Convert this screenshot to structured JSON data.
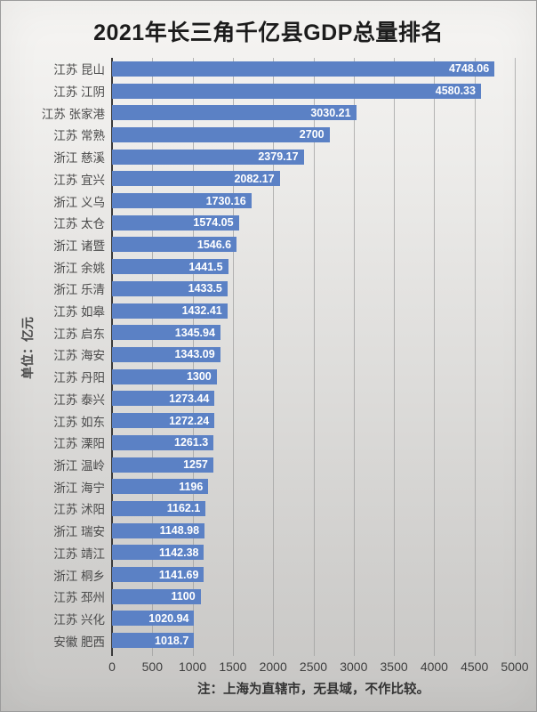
{
  "title": "2021年长三角千亿县GDP总量排名",
  "unit_label": "单位：亿元",
  "footnote": "注：上海为直辖市，无县域，不作比较。",
  "colors": {
    "bar": "#5b81c5",
    "bar_label": "#ffffff",
    "title": "#1c1c1c",
    "category_label": "#4a4a4a",
    "tick_label": "#3f3f3f",
    "gridline": "#9f9f9f",
    "axis_line": "#3a3a3a",
    "footnote": "#333333"
  },
  "chart_data": {
    "type": "bar",
    "orientation": "horizontal",
    "title": "2021年长三角千亿县GDP总量排名",
    "unit": "亿元",
    "categories": [
      "江苏 昆山",
      "江苏 江阴",
      "江苏 张家港",
      "江苏 常熟",
      "浙江 慈溪",
      "江苏 宜兴",
      "浙江 义乌",
      "江苏 太仓",
      "浙江 诸暨",
      "浙江 余姚",
      "浙江 乐清",
      "江苏 如皋",
      "江苏 启东",
      "江苏 海安",
      "江苏 丹阳",
      "江苏 泰兴",
      "江苏 如东",
      "江苏 溧阳",
      "浙江 温岭",
      "浙江 海宁",
      "江苏 沭阳",
      "浙江 瑞安",
      "江苏 靖江",
      "浙江 桐乡",
      "江苏 邳州",
      "江苏 兴化",
      "安徽 肥西"
    ],
    "values": [
      4748.06,
      4580.33,
      3030.21,
      2700,
      2379.17,
      2082.17,
      1730.16,
      1574.05,
      1546.6,
      1441.5,
      1433.5,
      1432.41,
      1345.94,
      1343.09,
      1300,
      1273.44,
      1272.24,
      1261.3,
      1257,
      1196,
      1162.1,
      1148.98,
      1142.38,
      1141.69,
      1100,
      1020.94,
      1018.7
    ],
    "xlim": [
      0,
      5000
    ],
    "x_ticks": [
      0,
      500,
      1000,
      1500,
      2000,
      2500,
      3000,
      3500,
      4000,
      4500,
      5000
    ],
    "grid": true,
    "legend": false,
    "footnote": "注：上海为直辖市，无县域，不作比较。"
  }
}
